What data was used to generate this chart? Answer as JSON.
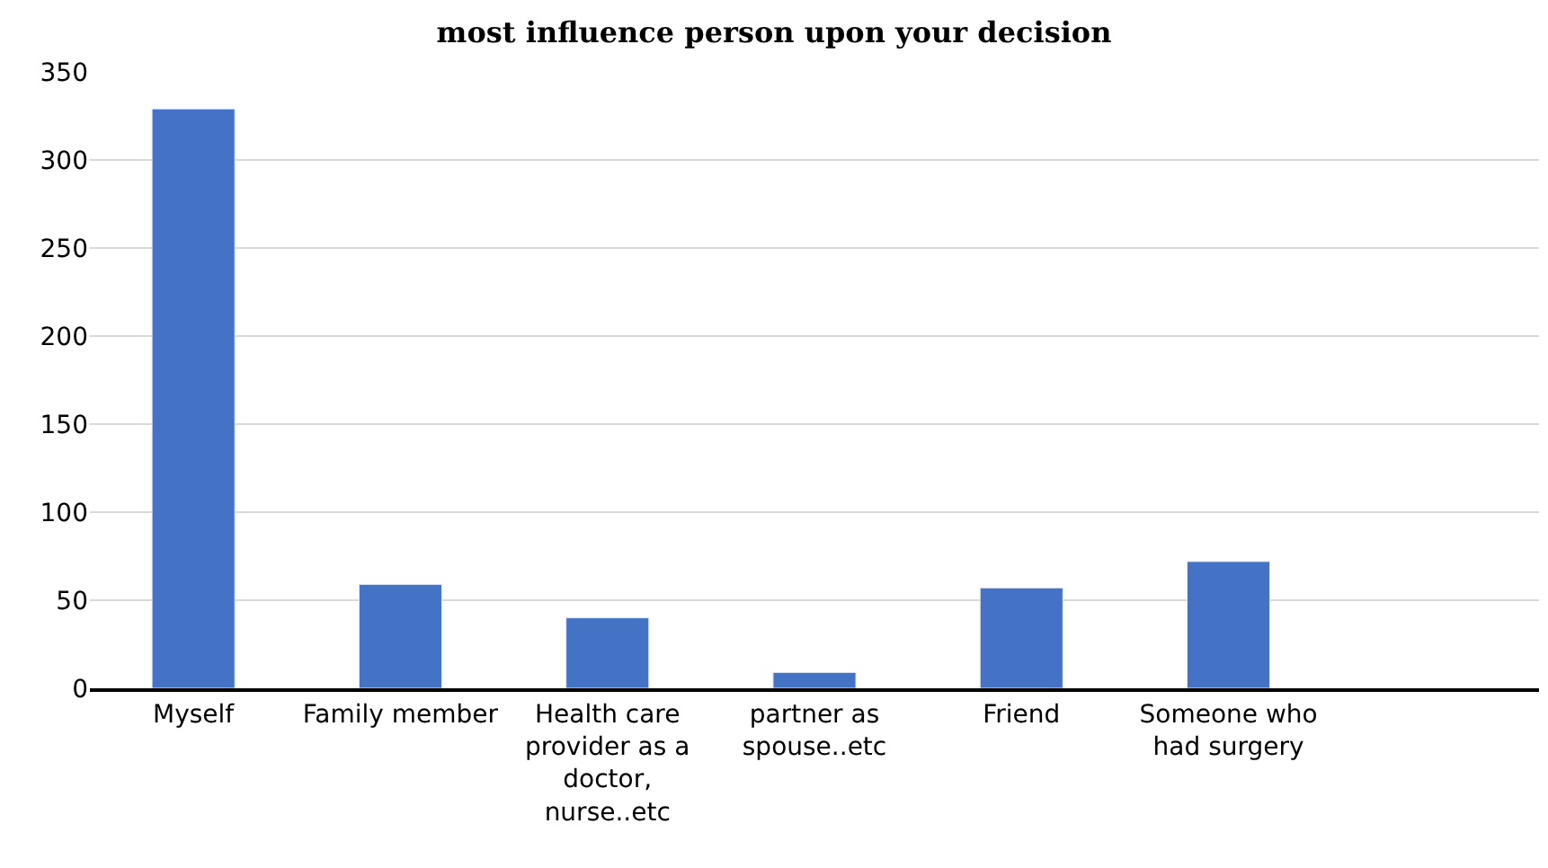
{
  "chart_data": {
    "type": "bar",
    "title": "most influence person upon your decision",
    "categories": [
      "Myself",
      "Family member",
      "Health care provider as a doctor, nurse..etc",
      "partner as spouse..etc",
      "Friend",
      "Someone who had surgery",
      null
    ],
    "values": [
      329,
      59,
      40,
      9,
      57,
      72,
      null
    ],
    "color": "#4472c4",
    "ylim": [
      0,
      350
    ],
    "yticks": [
      0,
      50,
      100,
      150,
      200,
      250,
      300,
      350
    ],
    "grid": "y",
    "legend": false
  }
}
